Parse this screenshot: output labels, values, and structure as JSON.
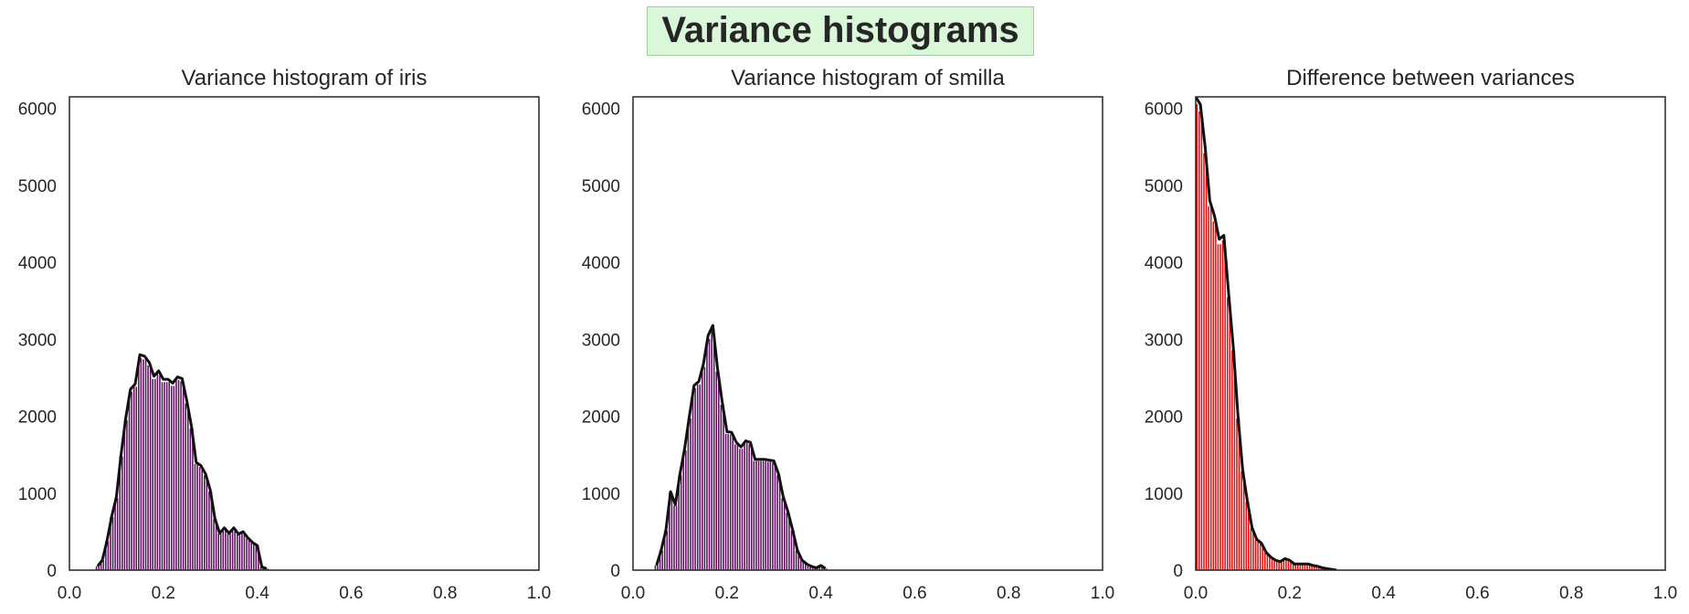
{
  "figure": {
    "title": "Variance histograms"
  },
  "chart_data": [
    {
      "type": "area",
      "title": "Variance histogram of iris",
      "xlabel": "",
      "ylabel": "",
      "xlim": [
        0.0,
        1.0
      ],
      "ylim": [
        0,
        6150
      ],
      "xticks": [
        "0.0",
        "0.2",
        "0.4",
        "0.6",
        "0.8",
        "1.0"
      ],
      "yticks": [
        "0",
        "1000",
        "2000",
        "3000",
        "4000",
        "5000",
        "6000"
      ],
      "grid": false,
      "color": "#5c0f5e",
      "series": [
        {
          "x": [
            0.06,
            0.07,
            0.08,
            0.09,
            0.1,
            0.11,
            0.12,
            0.13,
            0.14,
            0.15,
            0.16,
            0.17,
            0.18,
            0.19,
            0.2,
            0.21,
            0.22,
            0.23,
            0.24,
            0.25,
            0.26,
            0.27,
            0.28,
            0.29,
            0.3,
            0.31,
            0.32,
            0.33,
            0.34,
            0.35,
            0.36,
            0.37,
            0.38,
            0.39,
            0.4,
            0.41,
            0.42
          ],
          "y": [
            50,
            130,
            380,
            700,
            950,
            1500,
            1980,
            2350,
            2420,
            2800,
            2780,
            2700,
            2520,
            2590,
            2480,
            2480,
            2430,
            2510,
            2490,
            2200,
            1870,
            1400,
            1360,
            1250,
            1040,
            670,
            480,
            550,
            480,
            550,
            470,
            500,
            420,
            360,
            320,
            40,
            20
          ]
        }
      ]
    },
    {
      "type": "area",
      "title": "Variance histogram of smilla",
      "xlabel": "",
      "ylabel": "",
      "xlim": [
        0.0,
        1.0
      ],
      "ylim": [
        0,
        6150
      ],
      "xticks": [
        "0.0",
        "0.2",
        "0.4",
        "0.6",
        "0.8",
        "1.0"
      ],
      "yticks": [
        "0",
        "1000",
        "2000",
        "3000",
        "4000",
        "5000",
        "6000"
      ],
      "grid": false,
      "color": "#5c0f5e",
      "series": [
        {
          "x": [
            0.05,
            0.06,
            0.07,
            0.08,
            0.09,
            0.1,
            0.11,
            0.12,
            0.13,
            0.14,
            0.15,
            0.16,
            0.17,
            0.18,
            0.19,
            0.2,
            0.21,
            0.22,
            0.23,
            0.24,
            0.25,
            0.26,
            0.27,
            0.28,
            0.29,
            0.3,
            0.31,
            0.32,
            0.33,
            0.34,
            0.35,
            0.36,
            0.37,
            0.38,
            0.39,
            0.4,
            0.41
          ],
          "y": [
            60,
            260,
            520,
            1020,
            850,
            1250,
            1580,
            2000,
            2400,
            2450,
            2680,
            3050,
            3180,
            2620,
            2180,
            1800,
            1790,
            1660,
            1600,
            1680,
            1660,
            1440,
            1440,
            1440,
            1430,
            1420,
            1250,
            950,
            760,
            520,
            260,
            130,
            80,
            50,
            30,
            60,
            20
          ]
        }
      ]
    },
    {
      "type": "area",
      "title": "Difference between variances",
      "xlabel": "",
      "ylabel": "",
      "xlim": [
        0.0,
        1.0
      ],
      "ylim": [
        0,
        6150
      ],
      "xticks": [
        "0.0",
        "0.2",
        "0.4",
        "0.6",
        "0.8",
        "1.0"
      ],
      "yticks": [
        "0",
        "1000",
        "2000",
        "3000",
        "4000",
        "5000",
        "6000"
      ],
      "grid": false,
      "color": "#e01010",
      "series": [
        {
          "x": [
            0.0,
            0.01,
            0.02,
            0.03,
            0.04,
            0.05,
            0.06,
            0.07,
            0.08,
            0.09,
            0.1,
            0.11,
            0.12,
            0.13,
            0.14,
            0.15,
            0.16,
            0.17,
            0.18,
            0.19,
            0.2,
            0.21,
            0.22,
            0.23,
            0.24,
            0.25,
            0.26,
            0.27,
            0.28,
            0.29,
            0.3
          ],
          "y": [
            6150,
            6050,
            5500,
            4800,
            4600,
            4300,
            4350,
            3600,
            2900,
            2000,
            1300,
            900,
            550,
            400,
            350,
            230,
            170,
            130,
            110,
            150,
            130,
            80,
            80,
            80,
            80,
            60,
            50,
            30,
            20,
            10,
            0
          ]
        }
      ]
    }
  ]
}
